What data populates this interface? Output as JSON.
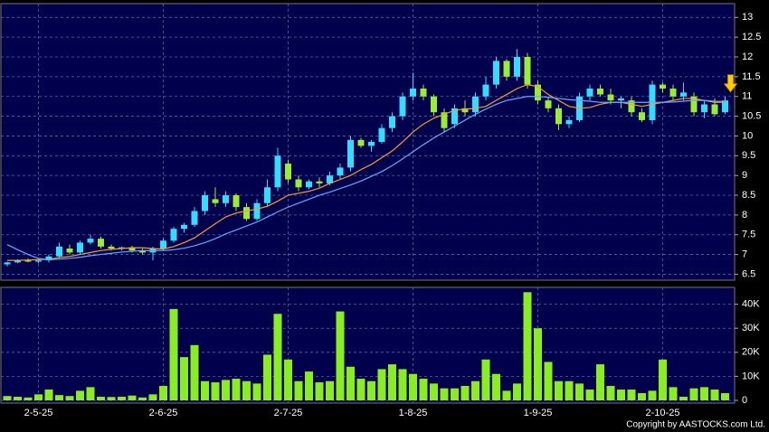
{
  "chart_data": [
    {
      "type": "candlestick",
      "up_color": "#33ddff",
      "down_color": "#99ee33",
      "ylim": [
        6.35,
        13.35
      ],
      "yticks": [
        6.5,
        7,
        7.5,
        8,
        8.5,
        9,
        9.5,
        10,
        10.5,
        11,
        11.5,
        12,
        12.5,
        13
      ],
      "grid": true,
      "ohlc": [
        [
          6.75,
          6.82,
          6.7,
          6.8
        ],
        [
          6.8,
          6.88,
          6.78,
          6.85
        ],
        [
          6.85,
          6.9,
          6.8,
          6.82
        ],
        [
          6.82,
          6.88,
          6.78,
          6.85
        ],
        [
          6.85,
          7.0,
          6.8,
          6.95
        ],
        [
          6.95,
          7.3,
          6.9,
          7.2
        ],
        [
          7.15,
          7.25,
          7.0,
          7.05
        ],
        [
          7.05,
          7.35,
          7.0,
          7.3
        ],
        [
          7.3,
          7.5,
          7.25,
          7.4
        ],
        [
          7.4,
          7.45,
          7.15,
          7.2
        ],
        [
          7.2,
          7.25,
          7.1,
          7.15
        ],
        [
          7.15,
          7.2,
          7.1,
          7.18
        ],
        [
          7.18,
          7.22,
          7.05,
          7.1
        ],
        [
          7.1,
          7.15,
          7.0,
          7.05
        ],
        [
          7.05,
          7.2,
          6.85,
          7.15
        ],
        [
          7.15,
          7.4,
          7.1,
          7.35
        ],
        [
          7.35,
          7.7,
          7.3,
          7.65
        ],
        [
          7.65,
          7.8,
          7.55,
          7.75
        ],
        [
          7.75,
          8.2,
          7.7,
          8.1
        ],
        [
          8.1,
          8.6,
          8.0,
          8.5
        ],
        [
          8.4,
          8.7,
          8.2,
          8.3
        ],
        [
          8.3,
          8.6,
          8.2,
          8.5
        ],
        [
          8.5,
          8.55,
          8.1,
          8.2
        ],
        [
          8.2,
          8.3,
          7.85,
          7.9
        ],
        [
          7.9,
          8.4,
          7.85,
          8.3
        ],
        [
          8.3,
          8.9,
          8.2,
          8.7
        ],
        [
          8.7,
          9.7,
          8.6,
          9.5
        ],
        [
          9.3,
          9.4,
          8.8,
          8.9
        ],
        [
          8.9,
          9.0,
          8.6,
          8.7
        ],
        [
          8.7,
          8.9,
          8.65,
          8.85
        ],
        [
          8.85,
          8.95,
          8.7,
          8.8
        ],
        [
          8.8,
          9.1,
          8.75,
          9.0
        ],
        [
          9.0,
          9.3,
          8.9,
          9.2
        ],
        [
          9.2,
          10.0,
          9.1,
          9.9
        ],
        [
          9.9,
          9.95,
          9.7,
          9.75
        ],
        [
          9.75,
          9.9,
          9.6,
          9.85
        ],
        [
          9.85,
          10.3,
          9.8,
          10.2
        ],
        [
          10.2,
          10.6,
          10.1,
          10.5
        ],
        [
          10.5,
          11.1,
          10.4,
          11.0
        ],
        [
          11.0,
          11.6,
          10.9,
          11.2
        ],
        [
          11.2,
          11.3,
          10.9,
          11.0
        ],
        [
          11.0,
          11.05,
          10.5,
          10.6
        ],
        [
          10.6,
          10.7,
          10.1,
          10.2
        ],
        [
          10.3,
          10.8,
          10.2,
          10.7
        ],
        [
          10.7,
          10.9,
          10.5,
          10.6
        ],
        [
          10.6,
          11.1,
          10.5,
          11.0
        ],
        [
          11.0,
          11.5,
          10.9,
          11.3
        ],
        [
          11.3,
          12.0,
          11.2,
          11.9
        ],
        [
          11.9,
          11.95,
          11.4,
          11.5
        ],
        [
          11.5,
          12.2,
          11.4,
          12.0
        ],
        [
          12.0,
          12.1,
          11.2,
          11.3
        ],
        [
          11.3,
          11.4,
          10.8,
          10.9
        ],
        [
          10.9,
          11.0,
          10.6,
          10.7
        ],
        [
          10.7,
          10.8,
          10.15,
          10.3
        ],
        [
          10.3,
          10.5,
          10.2,
          10.4
        ],
        [
          10.4,
          11.1,
          10.35,
          11.0
        ],
        [
          11.0,
          11.3,
          10.9,
          11.2
        ],
        [
          11.2,
          11.3,
          11.0,
          11.05
        ],
        [
          11.05,
          11.2,
          10.8,
          10.9
        ],
        [
          10.9,
          11.0,
          10.7,
          10.95
        ],
        [
          10.9,
          11.0,
          10.5,
          10.6
        ],
        [
          10.6,
          10.7,
          10.35,
          10.4
        ],
        [
          10.4,
          11.4,
          10.3,
          11.3
        ],
        [
          11.3,
          11.35,
          11.1,
          11.2
        ],
        [
          11.2,
          11.3,
          10.9,
          11.0
        ],
        [
          11.0,
          11.35,
          10.9,
          11.1
        ],
        [
          11.0,
          11.1,
          10.5,
          10.6
        ],
        [
          10.6,
          10.9,
          10.45,
          10.8
        ],
        [
          10.8,
          10.95,
          10.5,
          10.55
        ],
        [
          10.6,
          11.0,
          10.55,
          10.9
        ]
      ],
      "lines": [
        {
          "color": "#ff9933",
          "values": [
            6.85,
            6.85,
            6.86,
            6.87,
            6.88,
            6.92,
            6.95,
            7.0,
            7.05,
            7.1,
            7.13,
            7.15,
            7.17,
            7.17,
            7.15,
            7.14,
            7.2,
            7.3,
            7.42,
            7.6,
            7.78,
            7.95,
            8.05,
            8.1,
            8.15,
            8.22,
            8.35,
            8.5,
            8.55,
            8.6,
            8.68,
            8.8,
            8.9,
            9.0,
            9.15,
            9.28,
            9.45,
            9.62,
            9.85,
            10.1,
            10.3,
            10.45,
            10.55,
            10.65,
            10.68,
            10.7,
            10.75,
            10.9,
            11.05,
            11.2,
            11.3,
            11.25,
            11.05,
            10.9,
            10.75,
            10.7,
            10.72,
            10.8,
            10.85,
            10.85,
            10.8,
            10.75,
            10.8,
            10.85,
            10.9,
            10.95,
            10.95,
            10.9,
            10.85,
            10.85
          ]
        },
        {
          "color": "#66aaff",
          "values": [
            7.25,
            7.12,
            7.0,
            6.9,
            6.87,
            6.88,
            6.9,
            6.93,
            6.97,
            7.0,
            7.03,
            7.06,
            7.08,
            7.1,
            7.1,
            7.1,
            7.12,
            7.16,
            7.22,
            7.3,
            7.4,
            7.52,
            7.62,
            7.72,
            7.82,
            7.95,
            8.08,
            8.2,
            8.3,
            8.4,
            8.5,
            8.58,
            8.67,
            8.76,
            8.86,
            8.98,
            9.1,
            9.25,
            9.42,
            9.6,
            9.78,
            9.95,
            10.1,
            10.25,
            10.4,
            10.55,
            10.68,
            10.8,
            10.9,
            10.95,
            11.0,
            11.0,
            10.98,
            10.95,
            10.92,
            10.9,
            10.88,
            10.85,
            10.85,
            10.85,
            10.85,
            10.85,
            10.85,
            10.85,
            10.86,
            10.88,
            10.9,
            10.9,
            10.88,
            10.87
          ]
        }
      ]
    },
    {
      "type": "bar",
      "color": "#88ee22",
      "ylim": [
        0,
        47000
      ],
      "yticks": [
        0,
        {
          "value": 10000,
          "label": "10K"
        },
        {
          "value": 20000,
          "label": "20K"
        },
        {
          "value": 30000,
          "label": "30K"
        },
        {
          "value": 40000,
          "label": "40K"
        }
      ],
      "grid": true,
      "categories": [
        null,
        null,
        null,
        "2-5-25",
        null,
        null,
        null,
        null,
        null,
        null,
        null,
        null,
        null,
        null,
        null,
        "2-6-25",
        null,
        null,
        null,
        null,
        null,
        null,
        null,
        null,
        null,
        null,
        null,
        "2-7-25",
        null,
        null,
        null,
        null,
        null,
        null,
        null,
        null,
        null,
        null,
        null,
        "1-8-25",
        null,
        null,
        null,
        null,
        null,
        null,
        null,
        null,
        null,
        null,
        null,
        "1-9-25",
        null,
        null,
        null,
        null,
        null,
        null,
        null,
        null,
        null,
        null,
        null,
        "2-10-25",
        null,
        null,
        null,
        null,
        null,
        null
      ],
      "values": [
        1800,
        1500,
        1200,
        2500,
        4500,
        2200,
        1800,
        4000,
        5500,
        1500,
        1400,
        1500,
        2000,
        1200,
        2500,
        6000,
        38000,
        18000,
        23000,
        8000,
        7500,
        8500,
        9000,
        8000,
        7000,
        19000,
        36000,
        17000,
        8000,
        12000,
        7500,
        8000,
        37000,
        14000,
        9000,
        8000,
        13000,
        15000,
        13000,
        11000,
        9000,
        7000,
        5000,
        5000,
        6000,
        8000,
        17000,
        11000,
        4000,
        7000,
        45000,
        30000,
        16000,
        8000,
        8000,
        7000,
        4500,
        15000,
        6000,
        4500,
        4500,
        3000,
        4000,
        17000,
        5500,
        1500,
        5000,
        5500,
        4500,
        3000
      ]
    }
  ],
  "footer": "Copyright by AASTOCKS.com Ltd."
}
